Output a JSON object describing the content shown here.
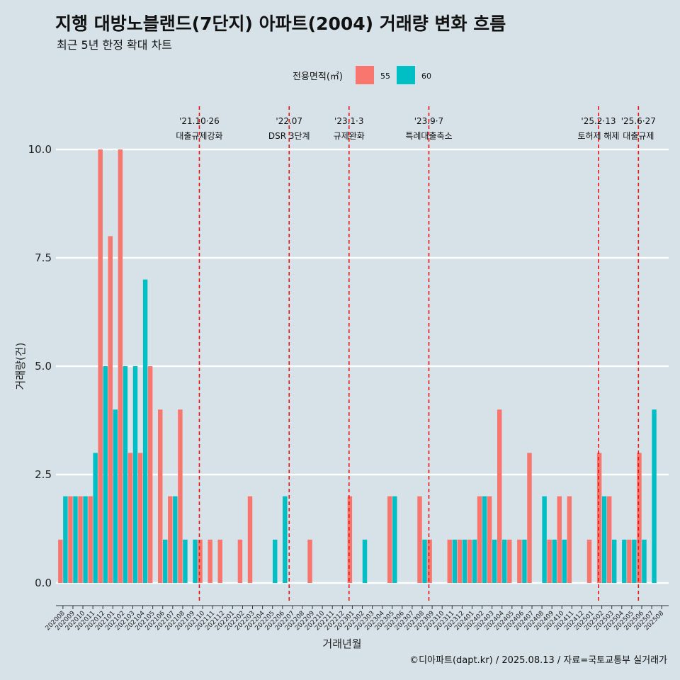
{
  "chart_data": {
    "type": "bar",
    "title": "지행 대방노블랜드(7단지) 아파트(2004) 거래량 변화 흐름",
    "subtitle": "최근 5년 한정 확대 차트",
    "xlabel": "거래년월",
    "ylabel": "거래량(건)",
    "ylim": [
      -0.45,
      11.3
    ],
    "yticks": [
      "0.0",
      "2.5",
      "5.0",
      "7.5",
      "10.0"
    ],
    "ytick_values": [
      0,
      2.5,
      5,
      7.5,
      10
    ],
    "legend": {
      "title": "전용면적(㎡)",
      "position": "top",
      "entries": [
        "55",
        "60"
      ]
    },
    "colors": {
      "55": "#f8766d",
      "60": "#00bfc4"
    },
    "categories": [
      "202008",
      "202009",
      "202010",
      "202011",
      "202012",
      "202101",
      "202102",
      "202103",
      "202104",
      "202105",
      "202106",
      "202107",
      "202108",
      "202109",
      "202110",
      "202111",
      "202112",
      "202201",
      "202202",
      "202203",
      "202204",
      "202205",
      "202206",
      "202207",
      "202208",
      "202209",
      "202210",
      "202211",
      "202212",
      "202301",
      "202302",
      "202303",
      "202304",
      "202305",
      "202306",
      "202307",
      "202308",
      "202309",
      "202310",
      "202311",
      "202312",
      "202401",
      "202402",
      "202403",
      "202404",
      "202405",
      "202406",
      "202407",
      "202408",
      "202409",
      "202410",
      "202411",
      "202412",
      "202501",
      "202502",
      "202503",
      "202504",
      "202505",
      "202506",
      "202507",
      "202508"
    ],
    "series": [
      {
        "name": "55",
        "values": [
          1,
          2,
          2,
          2,
          10,
          8,
          10,
          3,
          3,
          5,
          4,
          2,
          4,
          0,
          1,
          1,
          1,
          0,
          1,
          2,
          0,
          0,
          0,
          0,
          0,
          1,
          0,
          0,
          0,
          2,
          0,
          0,
          0,
          2,
          0,
          0,
          2,
          1,
          0,
          1,
          1,
          1,
          2,
          2,
          4,
          1,
          1,
          3,
          0,
          1,
          2,
          2,
          0,
          1,
          3,
          2,
          0,
          1,
          3,
          0,
          0
        ]
      },
      {
        "name": "60",
        "values": [
          2,
          2,
          2,
          3,
          5,
          4,
          5,
          5,
          7,
          0,
          1,
          2,
          1,
          1,
          0,
          0,
          0,
          0,
          0,
          0,
          0,
          1,
          2,
          0,
          0,
          0,
          0,
          0,
          0,
          0,
          1,
          0,
          0,
          2,
          0,
          0,
          1,
          0,
          0,
          1,
          1,
          1,
          2,
          1,
          1,
          0,
          1,
          0,
          2,
          1,
          1,
          0,
          0,
          0,
          2,
          1,
          1,
          1,
          1,
          4,
          0
        ]
      }
    ],
    "annotations": [
      {
        "date_line1": "'21.10·26",
        "date_line2": "대출규제강화",
        "x": 13.67
      },
      {
        "date_line1": "'22.07",
        "date_line2": "DSR 3단계",
        "x": 22.67
      },
      {
        "date_line1": "'23.1·3",
        "date_line2": "규제완화",
        "x": 28.67
      },
      {
        "date_line1": "'23.9·7",
        "date_line2": "특례대출축소",
        "x": 36.67
      },
      {
        "date_line1": "'25.2·13",
        "date_line2": "토허제 해제",
        "x": 53.67
      },
      {
        "date_line1": "'25.6·27",
        "date_line2": "대출규제",
        "x": 57.67
      }
    ]
  },
  "caption": "©디아파트(dapt.kr) / 2025.08.13 / 자료=국토교통부 실거래가"
}
